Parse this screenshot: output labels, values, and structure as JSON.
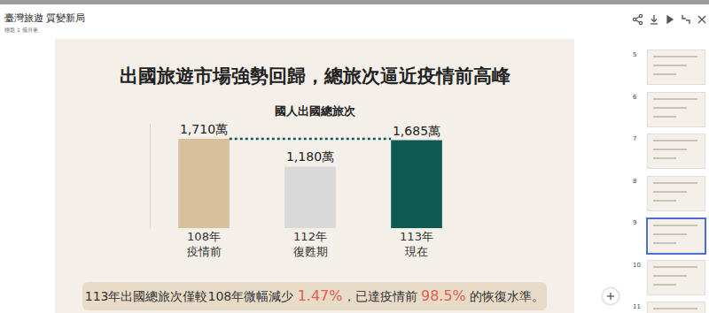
{
  "viewer": {
    "title": "臺灣旅遊 質變新局",
    "subtitle": "標題 1 個月更",
    "thumbnails": [
      5,
      6,
      7,
      8,
      9,
      10,
      11
    ],
    "selected": 9
  },
  "slide": {
    "title": "出國旅遊市場強勢回歸，總旅次逼近疫情前高峰",
    "caption": [
      "113年出國總旅次僅較108年微幅減少 ",
      "1.47%",
      "，已達疫情前 ",
      "98.5%",
      " 的恢復水準。"
    ]
  },
  "chart_data": {
    "type": "bar",
    "title": "國人出國總旅次",
    "categories": [
      "108年\n疫情前",
      "112年\n復甦期",
      "113年\n現在"
    ],
    "values": [
      1710,
      1180,
      1685
    ],
    "value_labels": [
      "1,710萬",
      "1,180萬",
      "1,685萬"
    ],
    "colors": [
      "#d8c09b",
      "#d9d9d9",
      "#0d5a55"
    ],
    "ylim": [
      0,
      2000
    ],
    "yticks": [],
    "data_labels": true,
    "tick_labels": "x",
    "grid": false
  }
}
